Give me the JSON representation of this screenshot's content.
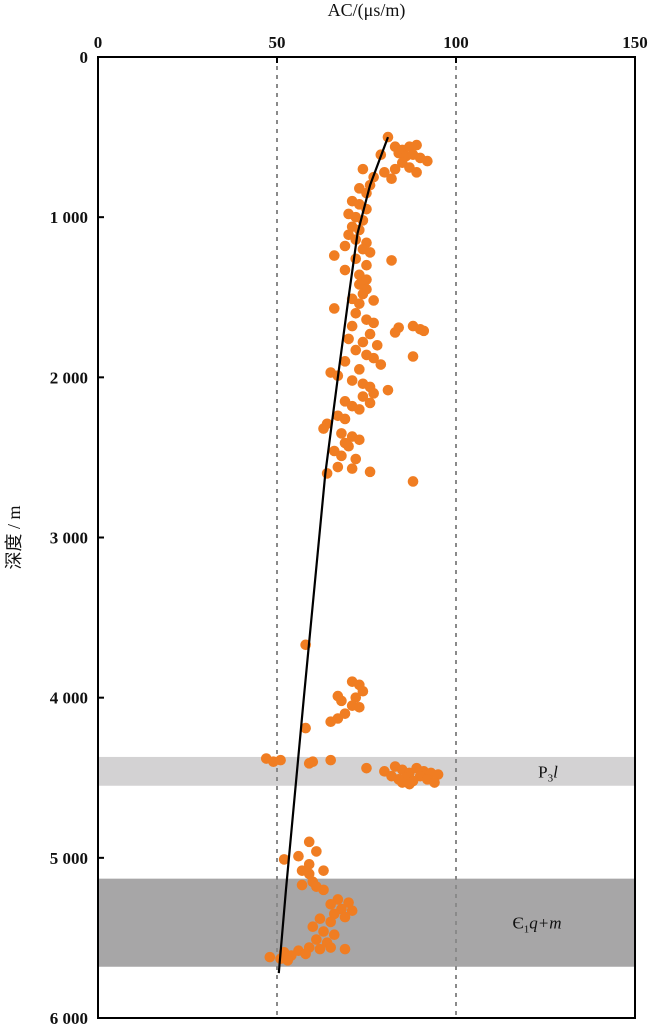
{
  "chart_data": {
    "type": "scatter",
    "xlabel": "AC/(μs/m)",
    "ylabel": "深度 / m",
    "xlim": [
      0,
      150
    ],
    "ylim": [
      0,
      6000
    ],
    "x_axis_position": "top",
    "y_inverted": true,
    "x_ticks": [
      {
        "value": 0,
        "label": "0"
      },
      {
        "value": 50,
        "label": "50"
      },
      {
        "value": 100,
        "label": "100"
      },
      {
        "value": 150,
        "label": "150"
      }
    ],
    "y_ticks": [
      {
        "value": 0,
        "label": "0"
      },
      {
        "value": 1000,
        "label": "1 000"
      },
      {
        "value": 2000,
        "label": "2 000"
      },
      {
        "value": 3000,
        "label": "3 000"
      },
      {
        "value": 4000,
        "label": "4 000"
      },
      {
        "value": 5000,
        "label": "5 000"
      },
      {
        "value": 6000,
        "label": "6 000"
      }
    ],
    "grid": {
      "vertical_dashed_at": [
        50,
        100
      ]
    },
    "point_color": "#f07d22",
    "trend_color": "#000000",
    "bands": [
      {
        "label_main": "P",
        "label_sub": "3",
        "label_rest": "l",
        "depth_from": 4370,
        "depth_to": 4550,
        "color": "#d3d2d3"
      },
      {
        "label_main": "Є",
        "label_sub": "1",
        "label_rest": "q+m",
        "depth_from": 5130,
        "depth_to": 5680,
        "color": "#a7a6a7"
      }
    ],
    "trend_line": [
      {
        "x": 81,
        "y": 500
      },
      {
        "x": 76,
        "y": 800
      },
      {
        "x": 72.5,
        "y": 1100
      },
      {
        "x": 70,
        "y": 1500
      },
      {
        "x": 67,
        "y": 2000
      },
      {
        "x": 63.5,
        "y": 2600
      },
      {
        "x": 60.5,
        "y": 3300
      },
      {
        "x": 57.5,
        "y": 4000
      },
      {
        "x": 55,
        "y": 4600
      },
      {
        "x": 52.5,
        "y": 5200
      },
      {
        "x": 50.5,
        "y": 5720
      }
    ],
    "points": [
      {
        "x": 81,
        "y": 500
      },
      {
        "x": 83,
        "y": 560
      },
      {
        "x": 85,
        "y": 580
      },
      {
        "x": 87,
        "y": 560
      },
      {
        "x": 89,
        "y": 550
      },
      {
        "x": 84,
        "y": 600
      },
      {
        "x": 86,
        "y": 620
      },
      {
        "x": 88,
        "y": 610
      },
      {
        "x": 90,
        "y": 630
      },
      {
        "x": 92,
        "y": 650
      },
      {
        "x": 79,
        "y": 610
      },
      {
        "x": 85,
        "y": 660
      },
      {
        "x": 87,
        "y": 690
      },
      {
        "x": 89,
        "y": 720
      },
      {
        "x": 83,
        "y": 700
      },
      {
        "x": 74,
        "y": 700
      },
      {
        "x": 77,
        "y": 750
      },
      {
        "x": 80,
        "y": 720
      },
      {
        "x": 82,
        "y": 760
      },
      {
        "x": 76,
        "y": 800
      },
      {
        "x": 73,
        "y": 820
      },
      {
        "x": 75,
        "y": 850
      },
      {
        "x": 71,
        "y": 900
      },
      {
        "x": 73,
        "y": 920
      },
      {
        "x": 75,
        "y": 950
      },
      {
        "x": 70,
        "y": 980
      },
      {
        "x": 72,
        "y": 1000
      },
      {
        "x": 74,
        "y": 1020
      },
      {
        "x": 71,
        "y": 1060
      },
      {
        "x": 73,
        "y": 1080
      },
      {
        "x": 70,
        "y": 1110
      },
      {
        "x": 72,
        "y": 1140
      },
      {
        "x": 75,
        "y": 1160
      },
      {
        "x": 69,
        "y": 1180
      },
      {
        "x": 74,
        "y": 1200
      },
      {
        "x": 76,
        "y": 1220
      },
      {
        "x": 66,
        "y": 1240
      },
      {
        "x": 72,
        "y": 1260
      },
      {
        "x": 82,
        "y": 1270
      },
      {
        "x": 75,
        "y": 1300
      },
      {
        "x": 69,
        "y": 1330
      },
      {
        "x": 73,
        "y": 1360
      },
      {
        "x": 75,
        "y": 1390
      },
      {
        "x": 73,
        "y": 1420
      },
      {
        "x": 75,
        "y": 1450
      },
      {
        "x": 74,
        "y": 1480
      },
      {
        "x": 71,
        "y": 1510
      },
      {
        "x": 77,
        "y": 1520
      },
      {
        "x": 73,
        "y": 1540
      },
      {
        "x": 66,
        "y": 1570
      },
      {
        "x": 72,
        "y": 1600
      },
      {
        "x": 75,
        "y": 1640
      },
      {
        "x": 77,
        "y": 1660
      },
      {
        "x": 71,
        "y": 1680
      },
      {
        "x": 84,
        "y": 1690
      },
      {
        "x": 88,
        "y": 1680
      },
      {
        "x": 90,
        "y": 1700
      },
      {
        "x": 91,
        "y": 1710
      },
      {
        "x": 83,
        "y": 1720
      },
      {
        "x": 76,
        "y": 1730
      },
      {
        "x": 70,
        "y": 1760
      },
      {
        "x": 74,
        "y": 1780
      },
      {
        "x": 78,
        "y": 1800
      },
      {
        "x": 72,
        "y": 1830
      },
      {
        "x": 75,
        "y": 1860
      },
      {
        "x": 88,
        "y": 1870
      },
      {
        "x": 77,
        "y": 1880
      },
      {
        "x": 69,
        "y": 1900
      },
      {
        "x": 79,
        "y": 1920
      },
      {
        "x": 73,
        "y": 1950
      },
      {
        "x": 65,
        "y": 1970
      },
      {
        "x": 67,
        "y": 1990
      },
      {
        "x": 71,
        "y": 2020
      },
      {
        "x": 74,
        "y": 2040
      },
      {
        "x": 76,
        "y": 2060
      },
      {
        "x": 81,
        "y": 2080
      },
      {
        "x": 77,
        "y": 2100
      },
      {
        "x": 74,
        "y": 2120
      },
      {
        "x": 69,
        "y": 2150
      },
      {
        "x": 76,
        "y": 2160
      },
      {
        "x": 71,
        "y": 2180
      },
      {
        "x": 73,
        "y": 2200
      },
      {
        "x": 67,
        "y": 2240
      },
      {
        "x": 69,
        "y": 2260
      },
      {
        "x": 64,
        "y": 2290
      },
      {
        "x": 63,
        "y": 2320
      },
      {
        "x": 68,
        "y": 2350
      },
      {
        "x": 71,
        "y": 2370
      },
      {
        "x": 73,
        "y": 2390
      },
      {
        "x": 69,
        "y": 2410
      },
      {
        "x": 70,
        "y": 2430
      },
      {
        "x": 66,
        "y": 2460
      },
      {
        "x": 68,
        "y": 2490
      },
      {
        "x": 72,
        "y": 2510
      },
      {
        "x": 67,
        "y": 2560
      },
      {
        "x": 71,
        "y": 2570
      },
      {
        "x": 64,
        "y": 2600
      },
      {
        "x": 76,
        "y": 2590
      },
      {
        "x": 88,
        "y": 2650
      },
      {
        "x": 58,
        "y": 3670
      },
      {
        "x": 71,
        "y": 3900
      },
      {
        "x": 73,
        "y": 3920
      },
      {
        "x": 74,
        "y": 3960
      },
      {
        "x": 67,
        "y": 3990
      },
      {
        "x": 72,
        "y": 4000
      },
      {
        "x": 68,
        "y": 4020
      },
      {
        "x": 71,
        "y": 4050
      },
      {
        "x": 73,
        "y": 4060
      },
      {
        "x": 69,
        "y": 4100
      },
      {
        "x": 67,
        "y": 4130
      },
      {
        "x": 65,
        "y": 4150
      },
      {
        "x": 58,
        "y": 4190
      },
      {
        "x": 47,
        "y": 4380
      },
      {
        "x": 49,
        "y": 4400
      },
      {
        "x": 51,
        "y": 4390
      },
      {
        "x": 60,
        "y": 4400
      },
      {
        "x": 65,
        "y": 4390
      },
      {
        "x": 59,
        "y": 4410
      },
      {
        "x": 75,
        "y": 4440
      },
      {
        "x": 80,
        "y": 4460
      },
      {
        "x": 83,
        "y": 4430
      },
      {
        "x": 85,
        "y": 4450
      },
      {
        "x": 87,
        "y": 4470
      },
      {
        "x": 89,
        "y": 4440
      },
      {
        "x": 91,
        "y": 4460
      },
      {
        "x": 93,
        "y": 4470
      },
      {
        "x": 95,
        "y": 4480
      },
      {
        "x": 82,
        "y": 4490
      },
      {
        "x": 84,
        "y": 4510
      },
      {
        "x": 86,
        "y": 4500
      },
      {
        "x": 88,
        "y": 4520
      },
      {
        "x": 90,
        "y": 4490
      },
      {
        "x": 92,
        "y": 4510
      },
      {
        "x": 94,
        "y": 4530
      },
      {
        "x": 87,
        "y": 4540
      },
      {
        "x": 85,
        "y": 4530
      },
      {
        "x": 59,
        "y": 4900
      },
      {
        "x": 61,
        "y": 4960
      },
      {
        "x": 56,
        "y": 4990
      },
      {
        "x": 52,
        "y": 5010
      },
      {
        "x": 59,
        "y": 5040
      },
      {
        "x": 57,
        "y": 5080
      },
      {
        "x": 59,
        "y": 5100
      },
      {
        "x": 63,
        "y": 5080
      },
      {
        "x": 60,
        "y": 5150
      },
      {
        "x": 57,
        "y": 5170
      },
      {
        "x": 61,
        "y": 5180
      },
      {
        "x": 63,
        "y": 5200
      },
      {
        "x": 67,
        "y": 5260
      },
      {
        "x": 70,
        "y": 5280
      },
      {
        "x": 65,
        "y": 5290
      },
      {
        "x": 68,
        "y": 5320
      },
      {
        "x": 71,
        "y": 5330
      },
      {
        "x": 66,
        "y": 5350
      },
      {
        "x": 69,
        "y": 5370
      },
      {
        "x": 62,
        "y": 5380
      },
      {
        "x": 65,
        "y": 5400
      },
      {
        "x": 60,
        "y": 5430
      },
      {
        "x": 63,
        "y": 5460
      },
      {
        "x": 66,
        "y": 5480
      },
      {
        "x": 61,
        "y": 5510
      },
      {
        "x": 64,
        "y": 5530
      },
      {
        "x": 59,
        "y": 5560
      },
      {
        "x": 62,
        "y": 5570
      },
      {
        "x": 65,
        "y": 5560
      },
      {
        "x": 69,
        "y": 5570
      },
      {
        "x": 56,
        "y": 5580
      },
      {
        "x": 58,
        "y": 5600
      },
      {
        "x": 52,
        "y": 5590
      },
      {
        "x": 54,
        "y": 5610
      },
      {
        "x": 48,
        "y": 5620
      },
      {
        "x": 51,
        "y": 5630
      },
      {
        "x": 53,
        "y": 5640
      }
    ]
  }
}
